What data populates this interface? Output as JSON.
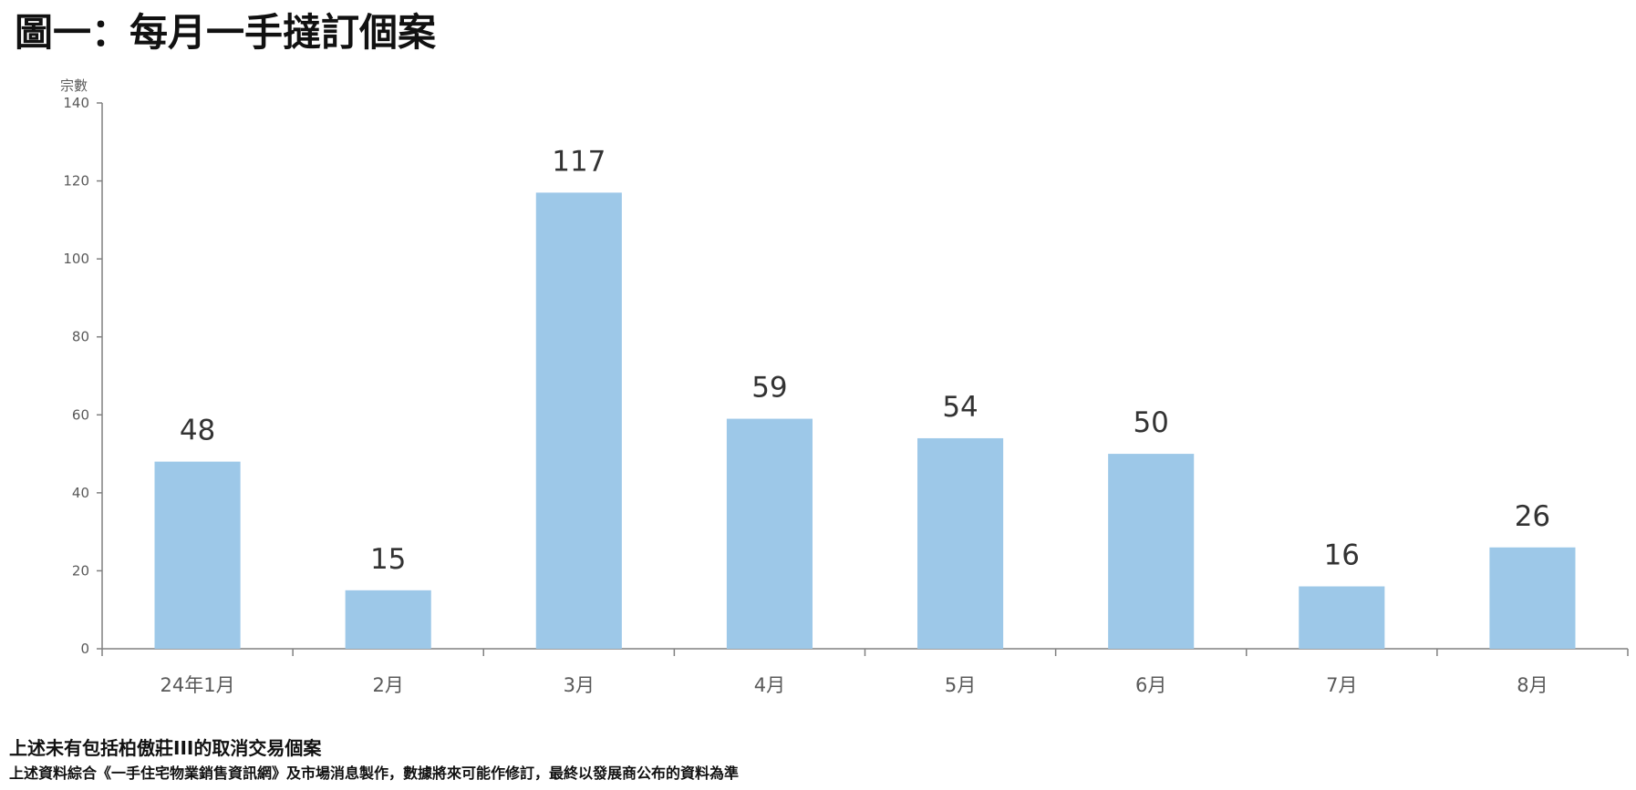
{
  "chart_data": {
    "type": "bar",
    "title": "圖一：每月一手撻訂個案",
    "ylabel": "宗數",
    "xlabel": "",
    "categories": [
      "24年1月",
      "2月",
      "3月",
      "4月",
      "5月",
      "6月",
      "7月",
      "8月"
    ],
    "values": [
      48,
      15,
      117,
      59,
      54,
      50,
      16,
      26
    ],
    "ylim": [
      0,
      140
    ],
    "yticks": [
      0,
      20,
      40,
      60,
      80,
      100,
      120,
      140
    ],
    "grid": false,
    "legend": "none",
    "bar_color": "#9DC8E8",
    "axis_color": "#808080"
  },
  "notes": {
    "line1": "上述未有包括柏傲莊III的取消交易個案",
    "line2": "上述資料綜合《一手住宅物業銷售資訊網》及市場消息製作，數據將來可能作修訂，最終以發展商公布的資料為準"
  }
}
